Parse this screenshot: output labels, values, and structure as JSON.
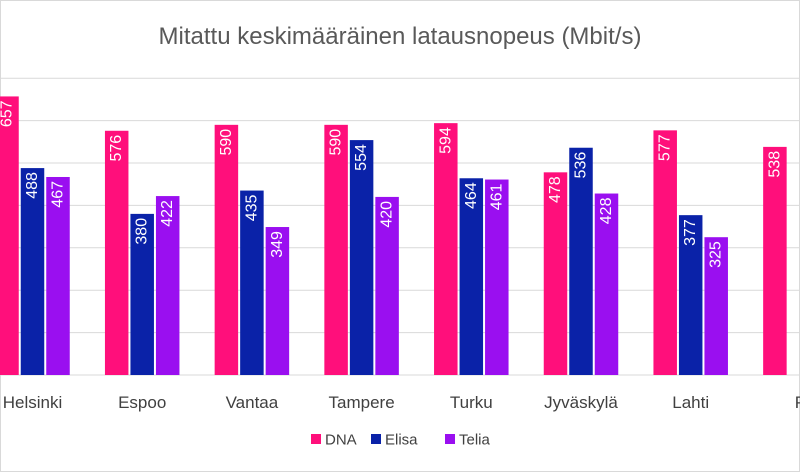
{
  "chart_data": {
    "type": "bar",
    "title": "Mitattu keskimääräinen latausnopeus (Mbit/s)",
    "categories": [
      "Helsinki",
      "Espoo",
      "Vantaa",
      "Tampere",
      "Turku",
      "Jyväskylä",
      "Lahti",
      "P"
    ],
    "series": [
      {
        "name": "DNA",
        "color": "#ff0f7b",
        "values": [
          657,
          576,
          590,
          590,
          594,
          478,
          577,
          538
        ]
      },
      {
        "name": "Elisa",
        "color": "#0a22a8",
        "values": [
          488,
          380,
          435,
          554,
          464,
          536,
          377,
          null
        ]
      },
      {
        "name": "Telia",
        "color": "#9a0ff0",
        "values": [
          467,
          422,
          349,
          420,
          461,
          428,
          325,
          null
        ]
      }
    ],
    "ylim": [
      0,
      700
    ],
    "grid": true,
    "legend_position": "bottom"
  }
}
